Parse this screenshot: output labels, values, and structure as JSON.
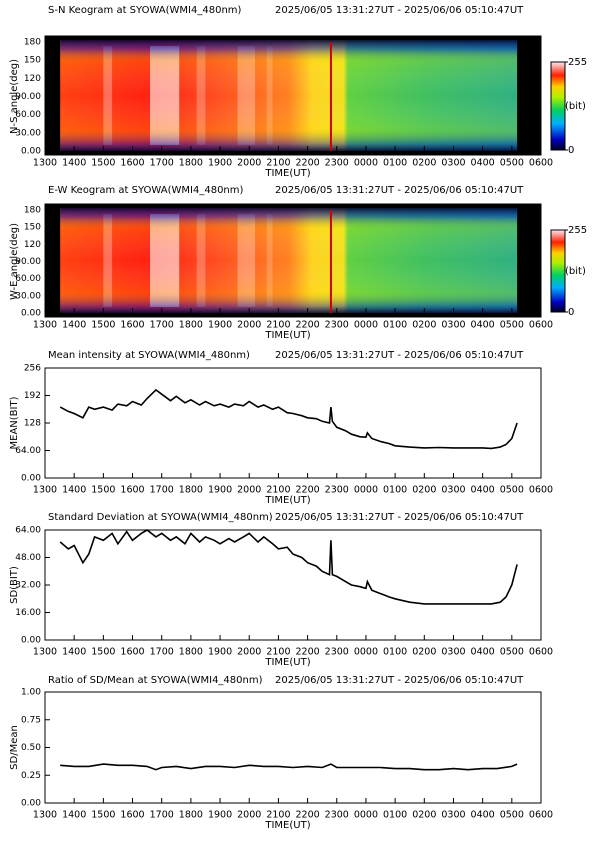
{
  "chart_data": [
    {
      "type": "image",
      "title": "S-N Keogram at SYOWA(WMI4_480nm)",
      "subtitle": "2025/06/05 13:31:27UT - 2025/06/06 05:10:47UT",
      "xlabel": "TIME(UT)",
      "ylabel": "N-S angle(deg)",
      "xlim": [
        13,
        30
      ],
      "xticks": [
        {
          "value": 13,
          "label": "1300"
        },
        {
          "value": 14,
          "label": "1400"
        },
        {
          "value": 15,
          "label": "1500"
        },
        {
          "value": 16,
          "label": "1600"
        },
        {
          "value": 17,
          "label": "1700"
        },
        {
          "value": 18,
          "label": "1800"
        },
        {
          "value": 19,
          "label": "1900"
        },
        {
          "value": 20,
          "label": "2000"
        },
        {
          "value": 21,
          "label": "2100"
        },
        {
          "value": 22,
          "label": "2200"
        },
        {
          "value": 23,
          "label": "2300"
        },
        {
          "value": 24,
          "label": "0000"
        },
        {
          "value": 25,
          "label": "0100"
        },
        {
          "value": 26,
          "label": "0200"
        },
        {
          "value": 27,
          "label": "0300"
        },
        {
          "value": 28,
          "label": "0400"
        },
        {
          "value": 29,
          "label": "0500"
        },
        {
          "value": 30,
          "label": "0600"
        }
      ],
      "ylim": [
        0,
        180
      ],
      "yticks": [
        {
          "value": 0,
          "label": "0.00"
        },
        {
          "value": 30,
          "label": "30.00"
        },
        {
          "value": 60,
          "label": "60.00"
        },
        {
          "value": 90,
          "label": "90.00"
        },
        120,
        150,
        180
      ],
      "zlim": [
        0,
        255
      ],
      "zticks": [
        0,
        255
      ],
      "zlabel": "(bit)"
    },
    {
      "type": "image",
      "title": "E-W Keogram at SYOWA(WMI4_480nm)",
      "subtitle": "2025/06/05 13:31:27UT - 2025/06/06 05:10:47UT",
      "xlabel": "TIME(UT)",
      "ylabel": "W-E angle(deg)",
      "xlim": [
        13,
        30
      ],
      "xticks": [
        {
          "value": 13,
          "label": "1300"
        },
        {
          "value": 14,
          "label": "1400"
        },
        {
          "value": 15,
          "label": "1500"
        },
        {
          "value": 16,
          "label": "1600"
        },
        {
          "value": 17,
          "label": "1700"
        },
        {
          "value": 18,
          "label": "1800"
        },
        {
          "value": 19,
          "label": "1900"
        },
        {
          "value": 20,
          "label": "2000"
        },
        {
          "value": 21,
          "label": "2100"
        },
        {
          "value": 22,
          "label": "2200"
        },
        {
          "value": 23,
          "label": "2300"
        },
        {
          "value": 24,
          "label": "0000"
        },
        {
          "value": 25,
          "label": "0100"
        },
        {
          "value": 26,
          "label": "0200"
        },
        {
          "value": 27,
          "label": "0300"
        },
        {
          "value": 28,
          "label": "0400"
        },
        {
          "value": 29,
          "label": "0500"
        },
        {
          "value": 30,
          "label": "0600"
        }
      ],
      "ylim": [
        0,
        180
      ],
      "yticks": [
        {
          "value": 0,
          "label": "0.00"
        },
        {
          "value": 30,
          "label": "30.00"
        },
        {
          "value": 60,
          "label": "60.00"
        },
        {
          "value": 90,
          "label": "90.00"
        },
        120,
        150,
        180
      ],
      "zlim": [
        0,
        255
      ],
      "zticks": [
        0,
        255
      ],
      "zlabel": "(bit)"
    },
    {
      "type": "line",
      "title": "Mean intensity at SYOWA(WMI4_480nm)",
      "subtitle": "2025/06/05 13:31:27UT - 2025/06/06 05:10:47UT",
      "xlabel": "TIME(UT)",
      "ylabel": "MEAN(BIT)",
      "color": "#000000",
      "xlim": [
        13,
        30
      ],
      "xticks": [
        {
          "value": 13,
          "label": "1300"
        },
        {
          "value": 14,
          "label": "1400"
        },
        {
          "value": 15,
          "label": "1500"
        },
        {
          "value": 16,
          "label": "1600"
        },
        {
          "value": 17,
          "label": "1700"
        },
        {
          "value": 18,
          "label": "1800"
        },
        {
          "value": 19,
          "label": "1900"
        },
        {
          "value": 20,
          "label": "2000"
        },
        {
          "value": 21,
          "label": "2100"
        },
        {
          "value": 22,
          "label": "2200"
        },
        {
          "value": 23,
          "label": "2300"
        },
        {
          "value": 24,
          "label": "0000"
        },
        {
          "value": 25,
          "label": "0100"
        },
        {
          "value": 26,
          "label": "0200"
        },
        {
          "value": 27,
          "label": "0300"
        },
        {
          "value": 28,
          "label": "0400"
        },
        {
          "value": 29,
          "label": "0500"
        },
        {
          "value": 30,
          "label": "0600"
        }
      ],
      "ylim": [
        0,
        256
      ],
      "yticks": [
        {
          "value": 0,
          "label": "0.00"
        },
        {
          "value": 64,
          "label": "64.00"
        },
        128,
        192,
        256
      ],
      "x": [
        13.52,
        13.8,
        14.0,
        14.3,
        14.5,
        14.7,
        15.0,
        15.3,
        15.5,
        15.8,
        16.0,
        16.3,
        16.5,
        16.8,
        17.0,
        17.3,
        17.5,
        17.8,
        18.0,
        18.3,
        18.5,
        18.8,
        19.0,
        19.3,
        19.5,
        19.8,
        20.0,
        20.3,
        20.5,
        20.8,
        21.0,
        21.3,
        21.5,
        21.8,
        22.0,
        22.3,
        22.5,
        22.75,
        22.8,
        22.85,
        23.0,
        23.3,
        23.5,
        23.8,
        24.0,
        24.05,
        24.2,
        24.5,
        24.8,
        25.0,
        25.5,
        26.0,
        26.5,
        27.0,
        27.5,
        28.0,
        28.3,
        28.6,
        28.8,
        29.0,
        29.18
      ],
      "values": [
        165,
        155,
        150,
        140,
        165,
        160,
        165,
        158,
        172,
        168,
        178,
        170,
        185,
        205,
        195,
        180,
        190,
        175,
        182,
        170,
        178,
        168,
        172,
        165,
        172,
        168,
        178,
        165,
        170,
        160,
        165,
        152,
        150,
        145,
        140,
        138,
        132,
        128,
        165,
        132,
        118,
        110,
        102,
        96,
        95,
        105,
        92,
        85,
        80,
        75,
        72,
        70,
        71,
        70,
        70,
        70,
        69,
        72,
        78,
        92,
        128
      ]
    },
    {
      "type": "line",
      "title": "Standard Deviation at SYOWA(WMI4_480nm)",
      "subtitle": "2025/06/05 13:31:27UT - 2025/06/06 05:10:47UT",
      "xlabel": "TIME(UT)",
      "ylabel": "SD(BIT)",
      "color": "#000000",
      "xlim": [
        13,
        30
      ],
      "xticks": [
        {
          "value": 13,
          "label": "1300"
        },
        {
          "value": 14,
          "label": "1400"
        },
        {
          "value": 15,
          "label": "1500"
        },
        {
          "value": 16,
          "label": "1600"
        },
        {
          "value": 17,
          "label": "1700"
        },
        {
          "value": 18,
          "label": "1800"
        },
        {
          "value": 19,
          "label": "1900"
        },
        {
          "value": 20,
          "label": "2000"
        },
        {
          "value": 21,
          "label": "2100"
        },
        {
          "value": 22,
          "label": "2200"
        },
        {
          "value": 23,
          "label": "2300"
        },
        {
          "value": 24,
          "label": "0000"
        },
        {
          "value": 25,
          "label": "0100"
        },
        {
          "value": 26,
          "label": "0200"
        },
        {
          "value": 27,
          "label": "0300"
        },
        {
          "value": 28,
          "label": "0400"
        },
        {
          "value": 29,
          "label": "0500"
        },
        {
          "value": 30,
          "label": "0600"
        }
      ],
      "ylim": [
        0,
        64
      ],
      "yticks": [
        {
          "value": 0,
          "label": "0.00"
        },
        {
          "value": 16,
          "label": "16.00"
        },
        {
          "value": 32,
          "label": "32.00"
        },
        {
          "value": 48,
          "label": "48.00"
        },
        {
          "value": 64,
          "label": "64.00"
        }
      ],
      "x": [
        13.52,
        13.8,
        14.0,
        14.3,
        14.5,
        14.7,
        15.0,
        15.3,
        15.5,
        15.8,
        16.0,
        16.3,
        16.5,
        16.8,
        17.0,
        17.3,
        17.5,
        17.8,
        18.0,
        18.3,
        18.5,
        18.8,
        19.0,
        19.3,
        19.5,
        19.8,
        20.0,
        20.3,
        20.5,
        20.8,
        21.0,
        21.3,
        21.5,
        21.8,
        22.0,
        22.3,
        22.5,
        22.75,
        22.8,
        22.85,
        23.0,
        23.3,
        23.5,
        23.8,
        24.0,
        24.05,
        24.2,
        24.5,
        24.8,
        25.0,
        25.5,
        26.0,
        26.5,
        27.0,
        27.5,
        28.0,
        28.3,
        28.6,
        28.8,
        29.0,
        29.18
      ],
      "values": [
        57,
        53,
        55,
        45,
        50,
        60,
        58,
        62,
        56,
        63,
        58,
        62,
        64,
        60,
        62,
        58,
        60,
        56,
        62,
        57,
        60,
        58,
        56,
        59,
        57,
        60,
        62,
        57,
        60,
        56,
        53,
        54,
        50,
        48,
        45,
        43,
        40,
        38,
        58,
        38,
        37,
        34,
        32,
        31,
        30,
        34,
        29,
        27,
        25,
        24,
        22,
        21,
        21,
        21,
        21,
        21,
        21,
        22,
        25,
        32,
        44
      ]
    },
    {
      "type": "line",
      "title": "Ratio of SD/Mean at SYOWA(WMI4_480nm)",
      "subtitle": "2025/06/05 13:31:27UT - 2025/06/06 05:10:47UT",
      "xlabel": "TIME(UT)",
      "ylabel": "SD/Mean",
      "color": "#000000",
      "xlim": [
        13,
        30
      ],
      "xticks": [
        {
          "value": 13,
          "label": "1300"
        },
        {
          "value": 14,
          "label": "1400"
        },
        {
          "value": 15,
          "label": "1500"
        },
        {
          "value": 16,
          "label": "1600"
        },
        {
          "value": 17,
          "label": "1700"
        },
        {
          "value": 18,
          "label": "1800"
        },
        {
          "value": 19,
          "label": "1900"
        },
        {
          "value": 20,
          "label": "2000"
        },
        {
          "value": 21,
          "label": "2100"
        },
        {
          "value": 22,
          "label": "2200"
        },
        {
          "value": 23,
          "label": "2300"
        },
        {
          "value": 24,
          "label": "0000"
        },
        {
          "value": 25,
          "label": "0100"
        },
        {
          "value": 26,
          "label": "0200"
        },
        {
          "value": 27,
          "label": "0300"
        },
        {
          "value": 28,
          "label": "0400"
        },
        {
          "value": 29,
          "label": "0500"
        },
        {
          "value": 30,
          "label": "0600"
        }
      ],
      "ylim": [
        0,
        1
      ],
      "yticks": [
        {
          "value": 0,
          "label": "0.00"
        },
        0.25,
        {
          "value": 0.5,
          "label": "0.50"
        },
        0.75,
        {
          "value": 1,
          "label": "1.00"
        }
      ],
      "x": [
        13.52,
        14.0,
        14.5,
        15.0,
        15.5,
        16.0,
        16.5,
        16.8,
        17.0,
        17.5,
        18.0,
        18.5,
        19.0,
        19.5,
        20.0,
        20.5,
        21.0,
        21.5,
        22.0,
        22.5,
        22.8,
        23.0,
        23.5,
        24.0,
        24.5,
        25.0,
        25.5,
        26.0,
        26.5,
        27.0,
        27.5,
        28.0,
        28.5,
        29.0,
        29.18
      ],
      "values": [
        0.34,
        0.33,
        0.33,
        0.35,
        0.34,
        0.34,
        0.33,
        0.3,
        0.32,
        0.33,
        0.31,
        0.33,
        0.33,
        0.32,
        0.34,
        0.33,
        0.33,
        0.32,
        0.33,
        0.32,
        0.35,
        0.32,
        0.32,
        0.32,
        0.32,
        0.31,
        0.31,
        0.3,
        0.3,
        0.31,
        0.3,
        0.31,
        0.31,
        0.33,
        0.35
      ]
    }
  ]
}
